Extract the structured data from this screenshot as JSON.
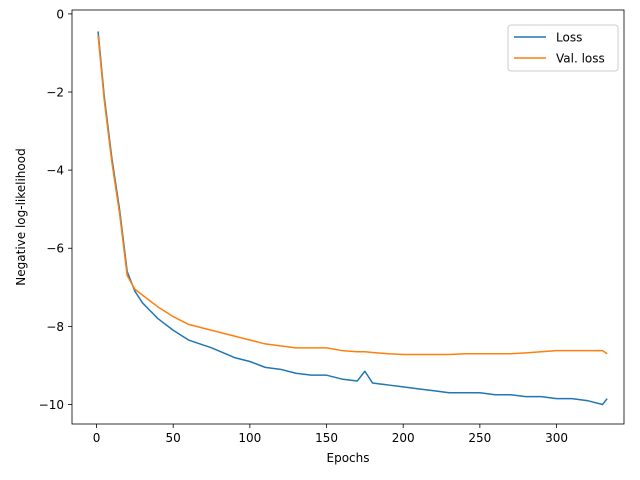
{
  "chart_data": {
    "type": "line",
    "title": "",
    "xlabel": "Epochs",
    "ylabel": "Negative log-likelihood",
    "xlim": [
      -16,
      344
    ],
    "ylim": [
      -10.5,
      0.1
    ],
    "xticks": [
      0,
      50,
      100,
      150,
      200,
      250,
      300
    ],
    "xtick_labels": [
      "0",
      "50",
      "100",
      "150",
      "200",
      "250",
      "300"
    ],
    "yticks": [
      0,
      -2,
      -4,
      -6,
      -8,
      -10
    ],
    "ytick_labels": [
      "0",
      "−2",
      "−4",
      "−6",
      "−8",
      "−10"
    ],
    "grid": false,
    "legend_position": "top-right",
    "x": [
      1,
      5,
      10,
      15,
      20,
      25,
      30,
      35,
      40,
      50,
      60,
      75,
      90,
      100,
      110,
      120,
      130,
      140,
      150,
      160,
      170,
      175,
      180,
      190,
      200,
      210,
      220,
      230,
      240,
      250,
      260,
      270,
      280,
      290,
      300,
      310,
      320,
      330,
      333
    ],
    "series": [
      {
        "name": "Loss",
        "color": "#1f77b4",
        "values": [
          -0.45,
          -2.1,
          -3.7,
          -5.0,
          -6.6,
          -7.1,
          -7.4,
          -7.6,
          -7.8,
          -8.1,
          -8.35,
          -8.55,
          -8.8,
          -8.9,
          -9.05,
          -9.1,
          -9.2,
          -9.25,
          -9.25,
          -9.35,
          -9.4,
          -9.15,
          -9.45,
          -9.5,
          -9.55,
          -9.6,
          -9.65,
          -9.7,
          -9.7,
          -9.7,
          -9.75,
          -9.75,
          -9.8,
          -9.8,
          -9.85,
          -9.85,
          -9.9,
          -10.0,
          -9.85
        ]
      },
      {
        "name": "Val. loss",
        "color": "#ff7f0e",
        "values": [
          -0.55,
          -2.2,
          -3.8,
          -5.1,
          -6.7,
          -7.05,
          -7.2,
          -7.35,
          -7.5,
          -7.75,
          -7.95,
          -8.1,
          -8.25,
          -8.35,
          -8.45,
          -8.5,
          -8.55,
          -8.55,
          -8.55,
          -8.62,
          -8.65,
          -8.65,
          -8.67,
          -8.7,
          -8.72,
          -8.72,
          -8.72,
          -8.72,
          -8.7,
          -8.7,
          -8.7,
          -8.7,
          -8.68,
          -8.65,
          -8.62,
          -8.62,
          -8.62,
          -8.62,
          -8.7
        ]
      }
    ]
  }
}
